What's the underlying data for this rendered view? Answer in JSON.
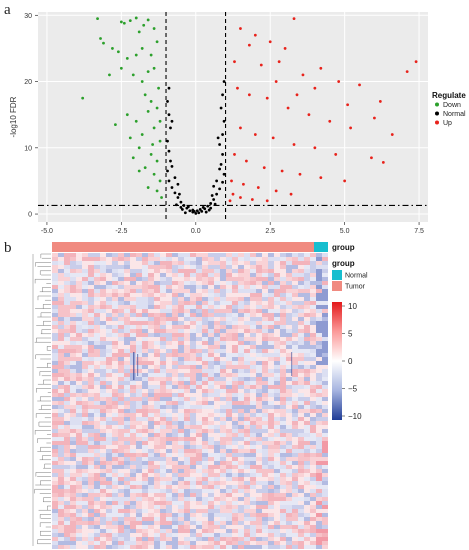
{
  "panel_a": {
    "label": "a",
    "chart_data": {
      "type": "scatter",
      "ylabel": "-log10 FDR",
      "xlabel": "",
      "xlim": [
        -5.3,
        7.8
      ],
      "ylim": [
        -1.2,
        30.5
      ],
      "xticks": [
        "-5.0",
        "-2.5",
        "0.0",
        "2.5",
        "5.0",
        "7.5"
      ],
      "xtick_values": [
        -5,
        -2.5,
        0,
        2.5,
        5,
        7.5
      ],
      "yticks": [
        "0",
        "10",
        "20",
        "30"
      ],
      "ytick_values": [
        0,
        10,
        20,
        30
      ],
      "vlines": [
        -1,
        1
      ],
      "hline": 1.3,
      "grid": true,
      "legend": {
        "title": "Regulate",
        "placement": "right",
        "entries": [
          {
            "label": "Down",
            "color": "#2ca02c"
          },
          {
            "label": "Normal",
            "color": "#000000"
          },
          {
            "label": "Up",
            "color": "#e8221b"
          }
        ]
      },
      "series": [
        {
          "name": "Down",
          "color": "#2ca02c",
          "points": [
            [
              -3.3,
              29.5
            ],
            [
              -3.2,
              26.5
            ],
            [
              -3.1,
              25.8
            ],
            [
              -2.5,
              29
            ],
            [
              -2.4,
              28.8
            ],
            [
              -2.2,
              29.2
            ],
            [
              -2,
              29.6
            ],
            [
              -1.9,
              27.5
            ],
            [
              -1.75,
              28.5
            ],
            [
              -1.6,
              29.3
            ],
            [
              -1.4,
              28
            ],
            [
              -2.8,
              25
            ],
            [
              -2.6,
              24.5
            ],
            [
              -2.3,
              23.5
            ],
            [
              -2,
              24
            ],
            [
              -1.8,
              25
            ],
            [
              -1.5,
              24
            ],
            [
              -1.3,
              26
            ],
            [
              -3.8,
              17.5
            ],
            [
              -2.9,
              21
            ],
            [
              -2.5,
              22
            ],
            [
              -2.1,
              21
            ],
            [
              -1.8,
              20
            ],
            [
              -1.6,
              21.5
            ],
            [
              -1.4,
              22
            ],
            [
              -1.25,
              19
            ],
            [
              -2.7,
              13.5
            ],
            [
              -2.3,
              15
            ],
            [
              -2,
              14
            ],
            [
              -1.8,
              12
            ],
            [
              -1.6,
              15.5
            ],
            [
              -1.4,
              13
            ],
            [
              -1.2,
              11
            ],
            [
              -2.2,
              11.5
            ],
            [
              -1.9,
              10
            ],
            [
              -1.5,
              9
            ],
            [
              -1.3,
              8
            ],
            [
              -1.7,
              7
            ],
            [
              -1.4,
              6
            ],
            [
              -1.2,
              5
            ],
            [
              -1.6,
              4
            ],
            [
              -1.3,
              3.5
            ],
            [
              -1.15,
              2.5
            ],
            [
              -2.1,
              8.5
            ],
            [
              -1.9,
              6.5
            ],
            [
              -1.5,
              17
            ],
            [
              -1.3,
              16
            ],
            [
              -1.7,
              18
            ],
            [
              -1.2,
              14
            ],
            [
              -1.45,
              10.5
            ]
          ]
        },
        {
          "name": "Normal",
          "color": "#000000",
          "points": [
            [
              0,
              0.1
            ],
            [
              0.1,
              0.2
            ],
            [
              -0.1,
              0.3
            ],
            [
              0.2,
              0.4
            ],
            [
              -0.2,
              0.5
            ],
            [
              0.3,
              0.8
            ],
            [
              -0.3,
              0.9
            ],
            [
              0.4,
              1.2
            ],
            [
              -0.4,
              1.3
            ],
            [
              0.5,
              1.6
            ],
            [
              -0.5,
              1.8
            ],
            [
              0.6,
              2.2
            ],
            [
              -0.6,
              2.5
            ],
            [
              0.7,
              3
            ],
            [
              -0.7,
              3.2
            ],
            [
              0.8,
              3.8
            ],
            [
              -0.8,
              4
            ],
            [
              0.9,
              4.8
            ],
            [
              -0.9,
              5
            ],
            [
              0.95,
              6
            ],
            [
              -0.95,
              6.5
            ],
            [
              0.85,
              7.5
            ],
            [
              -0.85,
              8
            ],
            [
              0.9,
              9
            ],
            [
              -0.9,
              9.5
            ],
            [
              0.8,
              10.5
            ],
            [
              -0.95,
              11
            ],
            [
              0.9,
              12
            ],
            [
              -0.85,
              13
            ],
            [
              0.95,
              14
            ],
            [
              -0.9,
              15
            ],
            [
              0.85,
              16
            ],
            [
              -0.95,
              17
            ],
            [
              0.9,
              18
            ],
            [
              -0.9,
              19
            ],
            [
              0.95,
              20
            ],
            [
              0.75,
              11.5
            ],
            [
              -0.8,
              14
            ],
            [
              -0.1,
              0.6
            ],
            [
              0.15,
              0.7
            ],
            [
              0.25,
              1
            ],
            [
              -0.25,
              1.1
            ],
            [
              0.45,
              0.6
            ],
            [
              -0.45,
              0.7
            ],
            [
              0.65,
              1.5
            ],
            [
              -0.65,
              1.4
            ],
            [
              0.55,
              2.8
            ],
            [
              -0.55,
              3
            ],
            [
              0.35,
              0.3
            ],
            [
              -0.35,
              0.2
            ],
            [
              0.7,
              5
            ],
            [
              -0.7,
              5.5
            ],
            [
              0.6,
              4.2
            ],
            [
              -0.6,
              4.5
            ],
            [
              0.8,
              6.8
            ],
            [
              -0.8,
              7.2
            ],
            [
              0.5,
              0.9
            ],
            [
              -0.5,
              1
            ],
            [
              0.05,
              0.5
            ],
            [
              -0.05,
              0.4
            ]
          ]
        },
        {
          "name": "Up",
          "color": "#e8221b",
          "points": [
            [
              3.3,
              29.5
            ],
            [
              1.5,
              28
            ],
            [
              2,
              27
            ],
            [
              2.5,
              26
            ],
            [
              3,
              25
            ],
            [
              1.8,
              25.5
            ],
            [
              1.3,
              23
            ],
            [
              2.2,
              22.5
            ],
            [
              2.8,
              23
            ],
            [
              3.6,
              21
            ],
            [
              4.2,
              22
            ],
            [
              4.8,
              20
            ],
            [
              5.5,
              19.5
            ],
            [
              6.2,
              17
            ],
            [
              7.4,
              23
            ],
            [
              7.1,
              21.5
            ],
            [
              1.4,
              19
            ],
            [
              1.8,
              18
            ],
            [
              2.4,
              17.5
            ],
            [
              3.1,
              16
            ],
            [
              3.8,
              15
            ],
            [
              4.5,
              14
            ],
            [
              5.2,
              13
            ],
            [
              6.6,
              12
            ],
            [
              1.5,
              13
            ],
            [
              2,
              12
            ],
            [
              2.6,
              11.5
            ],
            [
              3.3,
              10.5
            ],
            [
              4,
              10
            ],
            [
              4.7,
              9
            ],
            [
              5.9,
              8.5
            ],
            [
              6.3,
              7.8
            ],
            [
              1.3,
              9
            ],
            [
              1.7,
              8
            ],
            [
              2.3,
              7
            ],
            [
              2.9,
              6.5
            ],
            [
              3.5,
              6
            ],
            [
              4.2,
              5.5
            ],
            [
              5,
              5
            ],
            [
              1.2,
              5
            ],
            [
              1.6,
              4.5
            ],
            [
              2.1,
              4
            ],
            [
              2.7,
              3.5
            ],
            [
              3.2,
              3
            ],
            [
              1.25,
              3
            ],
            [
              1.5,
              2.5
            ],
            [
              1.9,
              2.2
            ],
            [
              2.4,
              2
            ],
            [
              1.15,
              2
            ],
            [
              4,
              19
            ],
            [
              5.1,
              16.5
            ],
            [
              6,
              14.5
            ],
            [
              3.4,
              18
            ],
            [
              2.7,
              20
            ]
          ]
        }
      ]
    }
  },
  "panel_b": {
    "label": "b",
    "top_bar_label": "group",
    "legend_group": {
      "title": "group",
      "entries": [
        {
          "label": "Normal",
          "color": "#17becf"
        },
        {
          "label": "Tumor",
          "color": "#f08a80"
        }
      ]
    },
    "colorbar": {
      "ticks": [
        "10",
        "5",
        "0",
        "−5",
        "−10"
      ],
      "colors": [
        "#e31a1c",
        "#fb9a99",
        "#ffffff",
        "#a6b4e0",
        "#1f3c96"
      ]
    }
  }
}
